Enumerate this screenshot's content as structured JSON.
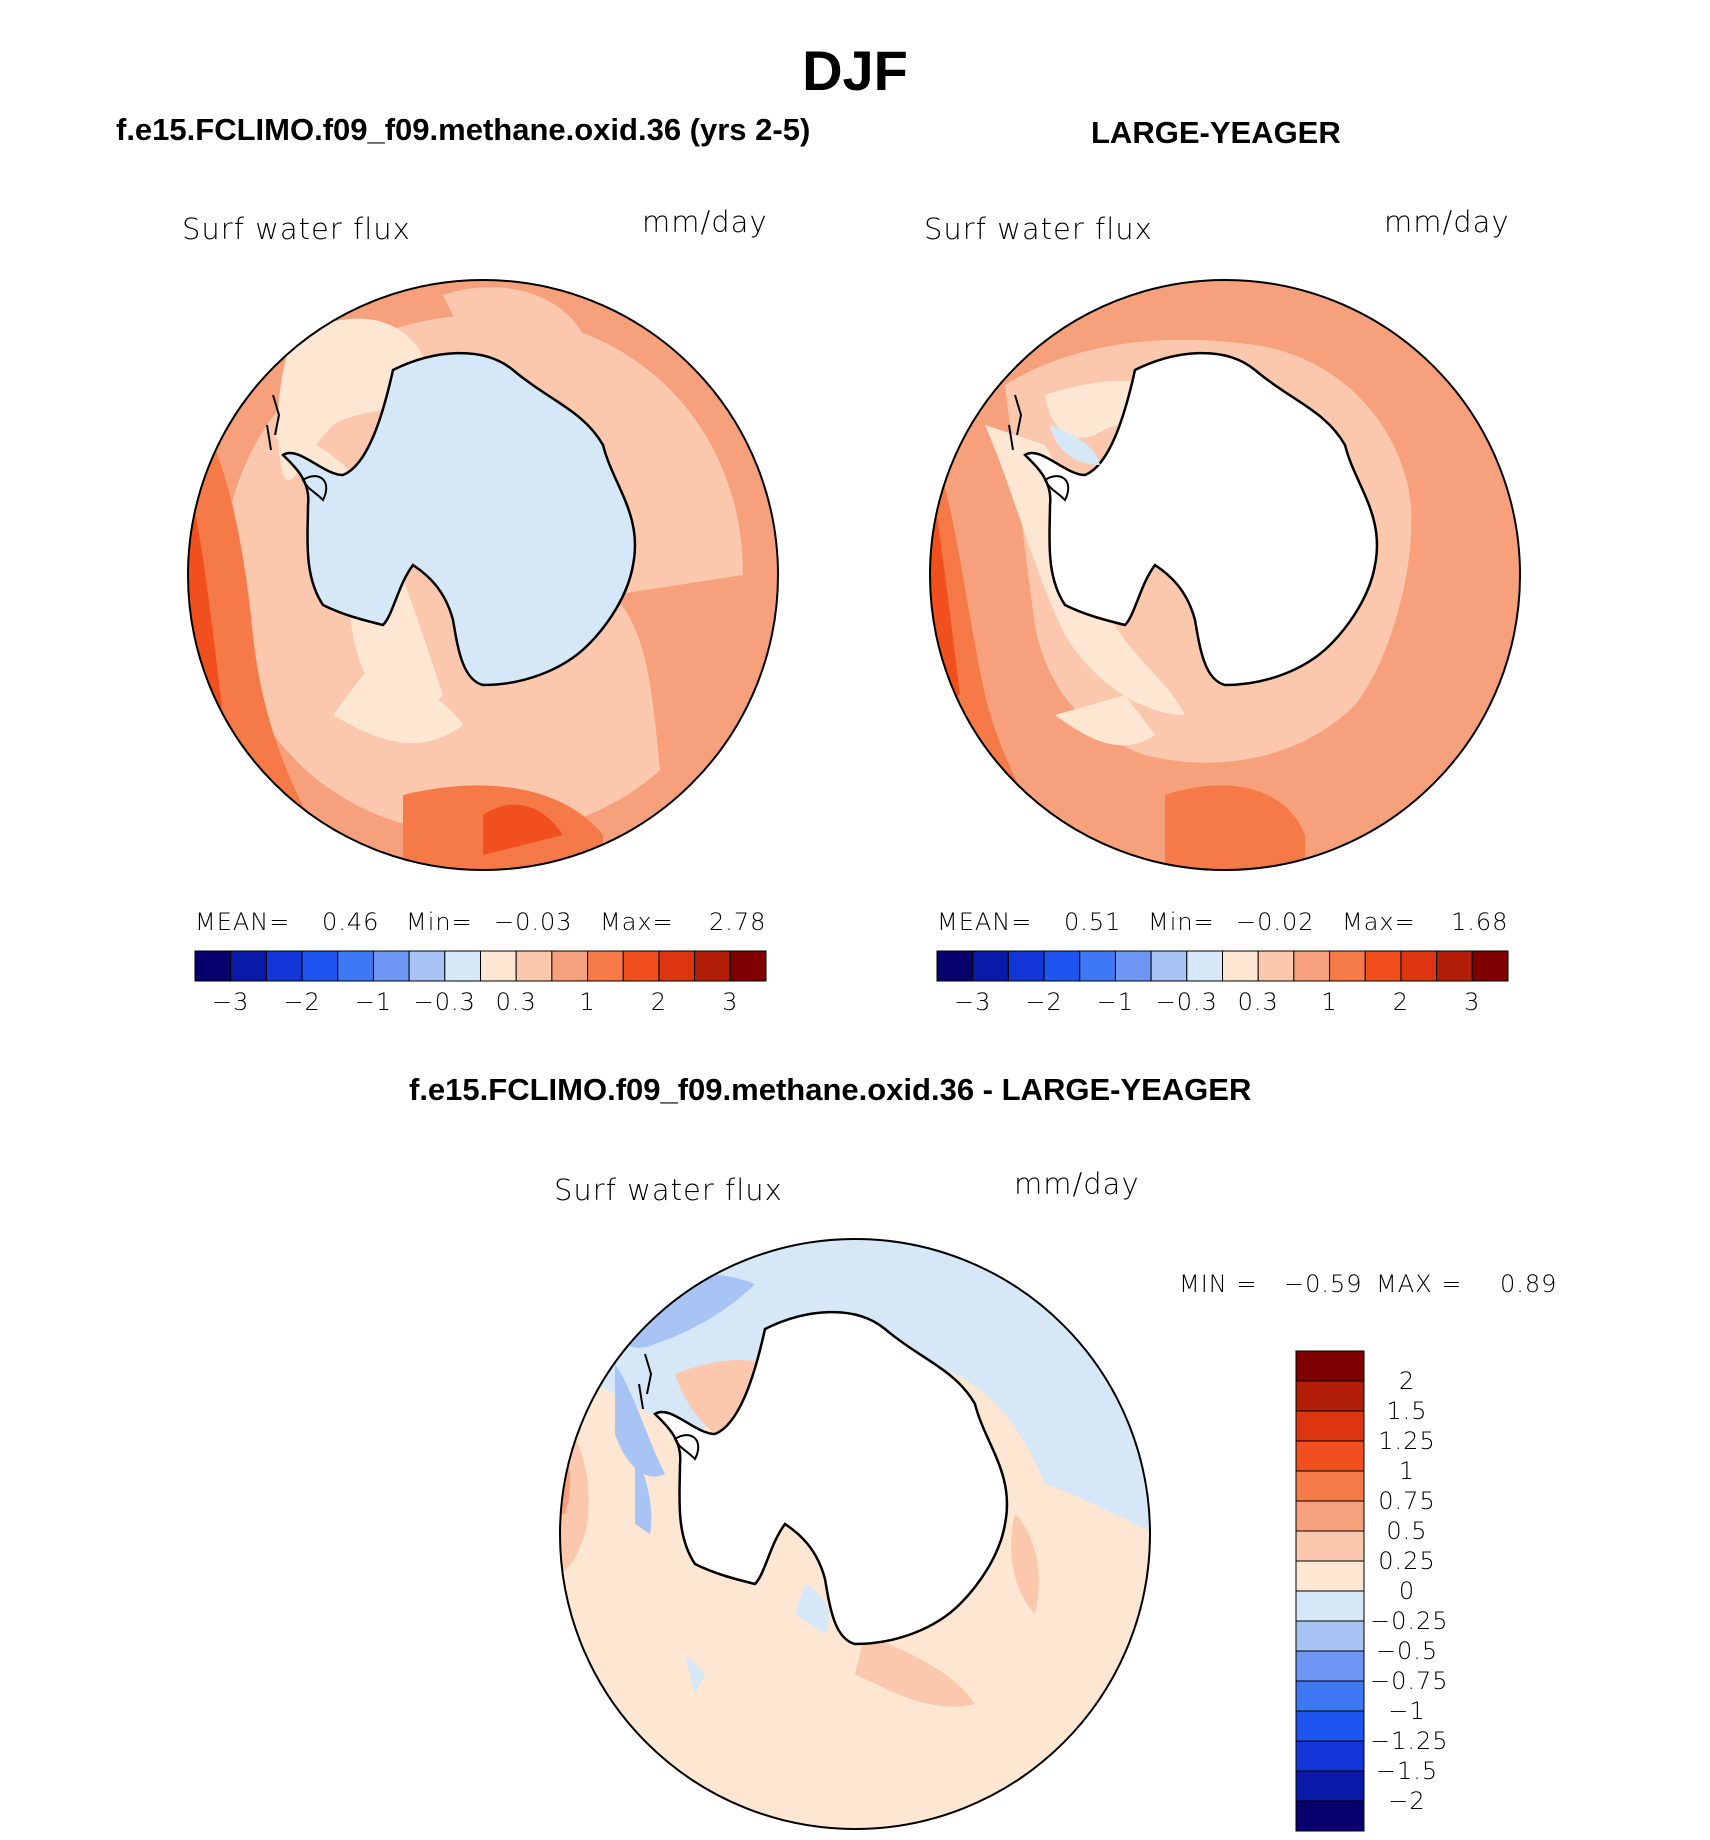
{
  "figure": {
    "title": "DJF",
    "panels": [
      {
        "title": "f.e15.FCLIMO.f09_f09.methane.oxid.36 (yrs 2-5)",
        "variable": "Surf water flux",
        "units": "mm/day",
        "stats": {
          "mean_label": "MEAN=",
          "mean": "0.46",
          "min_label": "Min=",
          "min": "−0.03",
          "max_label": "Max=",
          "max": "2.78"
        }
      },
      {
        "title": "LARGE-YEAGER",
        "variable": "Surf water flux",
        "units": "mm/day",
        "stats": {
          "mean_label": "MEAN=",
          "mean": "0.51",
          "min_label": "Min=",
          "min": "−0.02",
          "max_label": "Max=",
          "max": "1.68"
        }
      },
      {
        "title": "f.e15.FCLIMO.f09_f09.methane.oxid.36 - LARGE-YEAGER",
        "variable": "Surf water flux",
        "units": "mm/day",
        "stats": {
          "min_label": "MIN =",
          "min": "−0.59",
          "max_label": "MAX =",
          "max": "0.89"
        }
      }
    ],
    "colorbar_top": {
      "colors": [
        "#08006e",
        "#0a1aa8",
        "#1236d8",
        "#1e55f0",
        "#3e78f5",
        "#6e97f5",
        "#a8c4f5",
        "#d6e8f8",
        "#fde6d2",
        "#fbc8ae",
        "#f7a07c",
        "#f67a48",
        "#f24f1f",
        "#dc3510",
        "#b21e08",
        "#7e0000"
      ],
      "tick_labels": [
        "−3",
        "−2",
        "−1",
        "−0.3",
        "0.3",
        "1",
        "2",
        "3"
      ]
    },
    "colorbar_diff": {
      "colors_top_to_bottom": [
        "#7e0000",
        "#b21e08",
        "#dc3510",
        "#f24f1f",
        "#f67a48",
        "#f7a07c",
        "#fbc8ae",
        "#fde6d2",
        "#d6e8f8",
        "#a8c4f5",
        "#6e97f5",
        "#3e78f5",
        "#1e55f0",
        "#1236d8",
        "#0a1aa8",
        "#08006e"
      ],
      "tick_labels": [
        "2",
        "1.5",
        "1.25",
        "1",
        "0.75",
        "0.5",
        "0.25",
        "0",
        "−0.25",
        "−0.5",
        "−0.75",
        "−1",
        "−1.25",
        "−1.5",
        "−2"
      ]
    }
  }
}
